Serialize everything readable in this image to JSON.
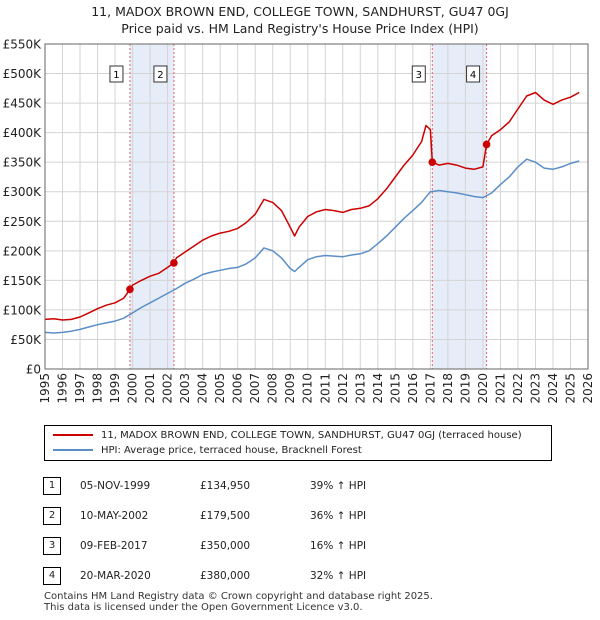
{
  "chart_data": {
    "type": "line",
    "title": "11, MADOX BROWN END, COLLEGE TOWN, SANDHURST, GU47 0GJ",
    "subtitle": "Price paid vs. HM Land Registry's House Price Index (HPI)",
    "xlim": [
      1995,
      2026
    ],
    "ylim": [
      0,
      550000
    ],
    "y_ticks": [
      0,
      50000,
      100000,
      150000,
      200000,
      250000,
      300000,
      350000,
      400000,
      450000,
      500000,
      550000
    ],
    "y_tick_labels": [
      "£0",
      "£50K",
      "£100K",
      "£150K",
      "£200K",
      "£250K",
      "£300K",
      "£350K",
      "£400K",
      "£450K",
      "£500K",
      "£550K"
    ],
    "x_ticks": [
      1995,
      1996,
      1997,
      1998,
      1999,
      2000,
      2001,
      2002,
      2003,
      2004,
      2005,
      2006,
      2007,
      2008,
      2009,
      2010,
      2011,
      2012,
      2013,
      2014,
      2015,
      2016,
      2017,
      2018,
      2019,
      2020,
      2021,
      2022,
      2023,
      2024,
      2025,
      2026
    ],
    "x_tick_labels": [
      "1995",
      "1996",
      "1997",
      "1998",
      "1999",
      "2000",
      "2001",
      "2002",
      "2003",
      "2004",
      "2005",
      "2006",
      "2007",
      "2008",
      "2009",
      "2010",
      "2011",
      "2012",
      "2013",
      "2014",
      "2015",
      "2016",
      "2017",
      "2018",
      "2019",
      "2020",
      "2021",
      "2022",
      "2023",
      "2024",
      "2025",
      "2026"
    ],
    "grid": true,
    "series": [
      {
        "name": "11, MADOX BROWN END, COLLEGE TOWN, SANDHURST, GU47 0GJ (terraced house)",
        "color": "#cc0000",
        "x": [
          1995.0,
          1995.5,
          1996.0,
          1996.5,
          1997.0,
          1997.5,
          1998.0,
          1998.5,
          1999.0,
          1999.5,
          1999.85,
          2000.0,
          2000.5,
          2001.0,
          2001.5,
          2002.0,
          2002.36,
          2002.5,
          2003.0,
          2003.5,
          2004.0,
          2004.5,
          2005.0,
          2005.5,
          2006.0,
          2006.5,
          2007.0,
          2007.5,
          2008.0,
          2008.5,
          2009.0,
          2009.25,
          2009.5,
          2010.0,
          2010.5,
          2011.0,
          2011.5,
          2012.0,
          2012.5,
          2013.0,
          2013.5,
          2014.0,
          2014.5,
          2015.0,
          2015.5,
          2016.0,
          2016.5,
          2016.75,
          2017.0,
          2017.11,
          2017.5,
          2018.0,
          2018.5,
          2019.0,
          2019.5,
          2020.0,
          2020.21,
          2020.5,
          2021.0,
          2021.5,
          2022.0,
          2022.5,
          2023.0,
          2023.5,
          2024.0,
          2024.5,
          2025.0,
          2025.5
        ],
        "values": [
          84000,
          85000,
          83000,
          84000,
          88000,
          95000,
          102000,
          108000,
          112000,
          120000,
          134950,
          142000,
          150000,
          157000,
          162000,
          172000,
          179500,
          188000,
          198000,
          208000,
          218000,
          225000,
          230000,
          233000,
          238000,
          248000,
          262000,
          287000,
          282000,
          268000,
          240000,
          225000,
          240000,
          258000,
          266000,
          270000,
          268000,
          265000,
          270000,
          272000,
          276000,
          288000,
          305000,
          325000,
          345000,
          362000,
          385000,
          412000,
          405000,
          350000,
          345000,
          348000,
          345000,
          340000,
          338000,
          342000,
          380000,
          395000,
          405000,
          418000,
          440000,
          462000,
          468000,
          455000,
          448000,
          455000,
          460000,
          468000
        ]
      },
      {
        "name": "HPI: Average price, terraced house, Bracknell Forest",
        "color": "#5b8ec7",
        "x": [
          1995.0,
          1995.5,
          1996.0,
          1996.5,
          1997.0,
          1997.5,
          1998.0,
          1998.5,
          1999.0,
          1999.5,
          2000.0,
          2000.5,
          2001.0,
          2001.5,
          2002.0,
          2002.5,
          2003.0,
          2003.5,
          2004.0,
          2004.5,
          2005.0,
          2005.5,
          2006.0,
          2006.5,
          2007.0,
          2007.5,
          2008.0,
          2008.5,
          2009.0,
          2009.25,
          2009.5,
          2010.0,
          2010.5,
          2011.0,
          2011.5,
          2012.0,
          2012.5,
          2013.0,
          2013.5,
          2014.0,
          2014.5,
          2015.0,
          2015.5,
          2016.0,
          2016.5,
          2017.0,
          2017.5,
          2018.0,
          2018.5,
          2019.0,
          2019.5,
          2020.0,
          2020.5,
          2021.0,
          2021.5,
          2022.0,
          2022.5,
          2023.0,
          2023.5,
          2024.0,
          2024.5,
          2025.0,
          2025.5
        ],
        "values": [
          62000,
          61000,
          62000,
          64000,
          67000,
          71000,
          75000,
          78000,
          81000,
          86000,
          95000,
          104000,
          112000,
          120000,
          128000,
          136000,
          145000,
          152000,
          160000,
          164000,
          167000,
          170000,
          172000,
          178000,
          188000,
          205000,
          200000,
          188000,
          170000,
          165000,
          172000,
          185000,
          190000,
          192000,
          191000,
          190000,
          193000,
          195000,
          200000,
          212000,
          225000,
          240000,
          255000,
          268000,
          282000,
          300000,
          302000,
          300000,
          298000,
          295000,
          292000,
          290000,
          298000,
          312000,
          325000,
          342000,
          355000,
          350000,
          340000,
          338000,
          342000,
          348000,
          352000
        ]
      }
    ],
    "sale_markers": [
      {
        "label": "1",
        "x": 1999.85,
        "y": 134950
      },
      {
        "label": "2",
        "x": 2002.36,
        "y": 179500
      },
      {
        "label": "3",
        "x": 2017.11,
        "y": 350000
      },
      {
        "label": "4",
        "x": 2020.21,
        "y": 380000
      }
    ],
    "shaded_periods": [
      [
        1999.85,
        2002.36
      ],
      [
        2017.11,
        2020.21
      ]
    ],
    "legend_position": "below"
  },
  "sales_table": [
    {
      "num": "1",
      "date": "05-NOV-1999",
      "price": "£134,950",
      "hpi": "39% ↑ HPI"
    },
    {
      "num": "2",
      "date": "10-MAY-2002",
      "price": "£179,500",
      "hpi": "36% ↑ HPI"
    },
    {
      "num": "3",
      "date": "09-FEB-2017",
      "price": "£350,000",
      "hpi": "16% ↑ HPI"
    },
    {
      "num": "4",
      "date": "20-MAR-2020",
      "price": "£380,000",
      "hpi": "32% ↑ HPI"
    }
  ],
  "footer": {
    "line1": "Contains HM Land Registry data © Crown copyright and database right 2025.",
    "line2": "This data is licensed under the Open Government Licence v3.0."
  }
}
